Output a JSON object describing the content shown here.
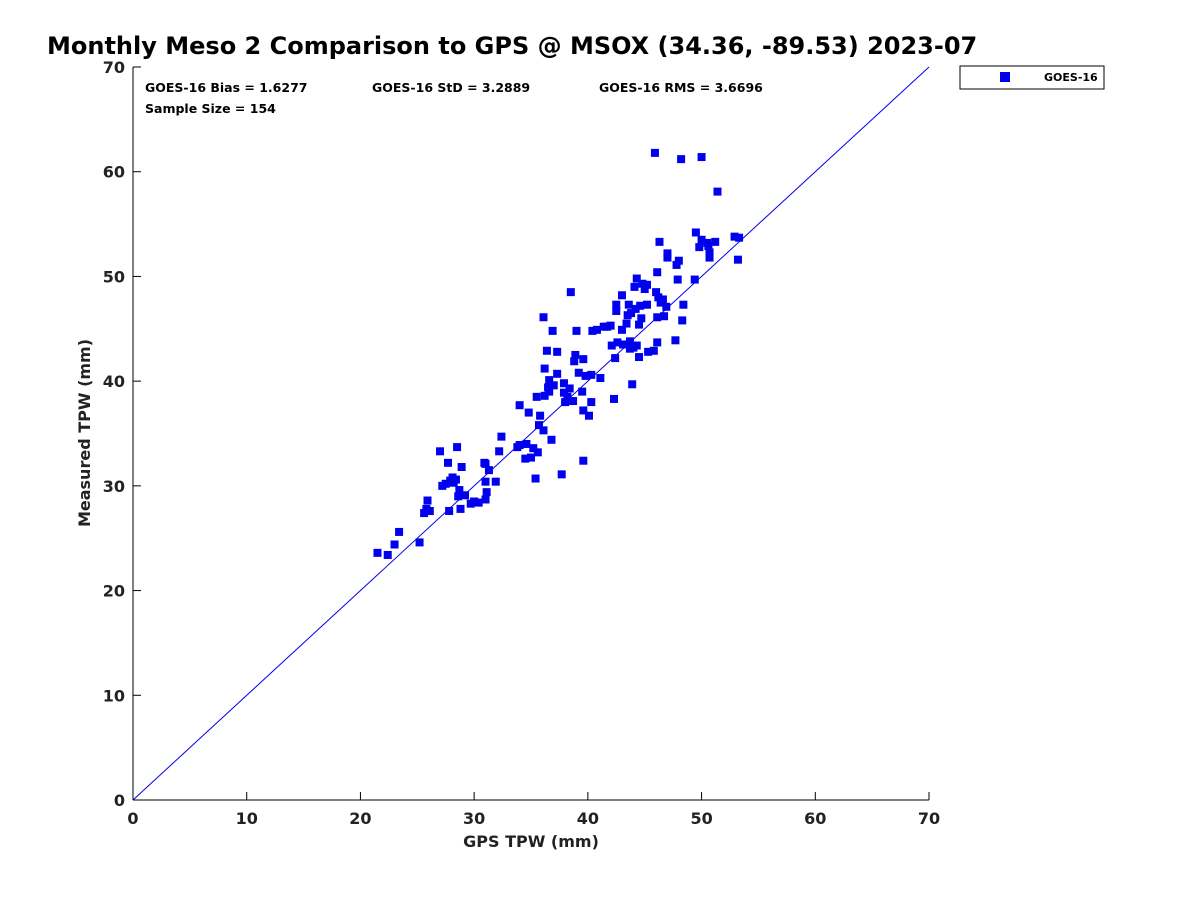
{
  "chart_data": {
    "type": "scatter",
    "title": "Monthly Meso 2 Comparison to GPS @ MSOX (34.36, -89.53) 2023-07",
    "xlabel": "GPS TPW (mm)",
    "ylabel": "Measured TPW (mm)",
    "xlim": [
      0,
      70
    ],
    "ylim": [
      0,
      70
    ],
    "xticks": [
      "0",
      "10",
      "20",
      "30",
      "40",
      "50",
      "60",
      "70"
    ],
    "yticks": [
      "0",
      "10",
      "20",
      "30",
      "40",
      "50",
      "60",
      "70"
    ],
    "grid": false,
    "legend_position": "outside-top-right",
    "reference_line": "y = x",
    "stats": {
      "bias": "GOES-16 Bias = 1.6277",
      "std": "GOES-16 StD = 3.2889",
      "rms": "GOES-16 RMS = 3.6696",
      "sample": "Sample Size = 154"
    },
    "series": [
      {
        "name": "GOES-16",
        "color": "#0000ee",
        "marker": "square",
        "points": [
          [
            21.5,
            23.6
          ],
          [
            22.4,
            23.4
          ],
          [
            23.0,
            24.4
          ],
          [
            23.4,
            25.6
          ],
          [
            25.2,
            24.6
          ],
          [
            25.6,
            27.4
          ],
          [
            25.8,
            27.8
          ],
          [
            25.9,
            28.6
          ],
          [
            26.1,
            27.6
          ],
          [
            27.0,
            33.3
          ],
          [
            27.2,
            30.0
          ],
          [
            27.5,
            30.2
          ],
          [
            27.7,
            32.2
          ],
          [
            27.8,
            27.6
          ],
          [
            27.9,
            30.5
          ],
          [
            28.1,
            30.8
          ],
          [
            28.2,
            30.3
          ],
          [
            28.4,
            30.6
          ],
          [
            28.5,
            33.7
          ],
          [
            28.6,
            29.0
          ],
          [
            28.7,
            29.6
          ],
          [
            28.8,
            27.8
          ],
          [
            28.9,
            31.8
          ],
          [
            29.2,
            29.1
          ],
          [
            29.7,
            28.3
          ],
          [
            30.0,
            28.5
          ],
          [
            30.4,
            28.4
          ],
          [
            30.9,
            32.2
          ],
          [
            31.0,
            30.4
          ],
          [
            31.1,
            29.4
          ],
          [
            31.3,
            31.5
          ],
          [
            31.0,
            28.7
          ],
          [
            31.9,
            30.4
          ],
          [
            32.2,
            33.3
          ],
          [
            32.4,
            34.7
          ],
          [
            33.8,
            33.7
          ],
          [
            34.0,
            33.9
          ],
          [
            34.0,
            37.7
          ],
          [
            34.5,
            32.6
          ],
          [
            34.6,
            34.0
          ],
          [
            34.8,
            37.0
          ],
          [
            35.0,
            32.7
          ],
          [
            35.2,
            33.6
          ],
          [
            35.4,
            30.7
          ],
          [
            35.5,
            38.5
          ],
          [
            35.6,
            33.2
          ],
          [
            35.7,
            35.8
          ],
          [
            35.8,
            36.7
          ],
          [
            36.1,
            35.3
          ],
          [
            36.2,
            41.2
          ],
          [
            36.1,
            46.1
          ],
          [
            36.2,
            38.6
          ],
          [
            36.4,
            42.9
          ],
          [
            36.5,
            39.4
          ],
          [
            36.6,
            39.0
          ],
          [
            36.6,
            40.1
          ],
          [
            36.8,
            34.4
          ],
          [
            36.9,
            44.8
          ],
          [
            37.0,
            39.6
          ],
          [
            37.3,
            40.7
          ],
          [
            37.3,
            42.8
          ],
          [
            37.7,
            31.1
          ],
          [
            37.9,
            39.8
          ],
          [
            37.9,
            38.9
          ],
          [
            38.0,
            38.0
          ],
          [
            38.2,
            38.5
          ],
          [
            38.4,
            39.3
          ],
          [
            38.5,
            48.5
          ],
          [
            38.7,
            38.1
          ],
          [
            38.8,
            41.9
          ],
          [
            38.9,
            42.5
          ],
          [
            39.0,
            44.8
          ],
          [
            39.2,
            40.8
          ],
          [
            39.5,
            39.0
          ],
          [
            39.6,
            37.2
          ],
          [
            39.6,
            42.1
          ],
          [
            39.6,
            32.4
          ],
          [
            39.8,
            40.5
          ],
          [
            40.1,
            36.7
          ],
          [
            40.3,
            40.6
          ],
          [
            40.3,
            38.0
          ],
          [
            40.4,
            44.8
          ],
          [
            40.8,
            44.9
          ],
          [
            41.1,
            40.3
          ],
          [
            41.4,
            45.2
          ],
          [
            41.7,
            45.2
          ],
          [
            42.0,
            45.3
          ],
          [
            42.1,
            43.4
          ],
          [
            42.3,
            38.3
          ],
          [
            42.4,
            42.2
          ],
          [
            42.5,
            46.7
          ],
          [
            42.5,
            47.3
          ],
          [
            42.6,
            43.7
          ],
          [
            43.0,
            44.9
          ],
          [
            43.0,
            48.2
          ],
          [
            43.1,
            43.5
          ],
          [
            43.4,
            45.5
          ],
          [
            43.5,
            46.3
          ],
          [
            43.6,
            47.3
          ],
          [
            43.7,
            43.1
          ],
          [
            43.7,
            43.8
          ],
          [
            43.8,
            46.5
          ],
          [
            43.9,
            39.7
          ],
          [
            44.0,
            43.2
          ],
          [
            44.1,
            49.0
          ],
          [
            44.2,
            46.9
          ],
          [
            44.3,
            43.4
          ],
          [
            44.3,
            49.8
          ],
          [
            44.5,
            42.3
          ],
          [
            44.5,
            45.4
          ],
          [
            44.6,
            47.2
          ],
          [
            44.7,
            46.0
          ],
          [
            44.8,
            49.3
          ],
          [
            45.0,
            48.8
          ],
          [
            45.2,
            47.3
          ],
          [
            45.2,
            49.2
          ],
          [
            45.3,
            42.8
          ],
          [
            45.8,
            42.9
          ],
          [
            45.9,
            61.8
          ],
          [
            46.0,
            48.5
          ],
          [
            46.1,
            43.7
          ],
          [
            46.1,
            50.4
          ],
          [
            46.1,
            46.1
          ],
          [
            46.2,
            48.0
          ],
          [
            46.3,
            53.3
          ],
          [
            46.4,
            47.5
          ],
          [
            46.6,
            47.8
          ],
          [
            46.7,
            46.2
          ],
          [
            46.9,
            47.1
          ],
          [
            47.0,
            52.2
          ],
          [
            47.0,
            51.8
          ],
          [
            47.7,
            43.9
          ],
          [
            47.8,
            51.1
          ],
          [
            47.9,
            49.7
          ],
          [
            48.0,
            51.5
          ],
          [
            48.2,
            61.2
          ],
          [
            48.3,
            45.8
          ],
          [
            48.4,
            47.3
          ],
          [
            49.4,
            49.7
          ],
          [
            49.5,
            54.2
          ],
          [
            49.8,
            52.8
          ],
          [
            50.0,
            61.4
          ],
          [
            50.0,
            53.5
          ],
          [
            50.5,
            53.2
          ],
          [
            50.6,
            52.9
          ],
          [
            50.7,
            52.3
          ],
          [
            50.7,
            51.8
          ],
          [
            51.2,
            53.3
          ],
          [
            51.4,
            58.1
          ],
          [
            52.9,
            53.8
          ],
          [
            53.3,
            53.7
          ],
          [
            53.2,
            51.6
          ],
          [
            31.0,
            32.1
          ],
          [
            30.0,
            28.5
          ]
        ]
      }
    ]
  }
}
